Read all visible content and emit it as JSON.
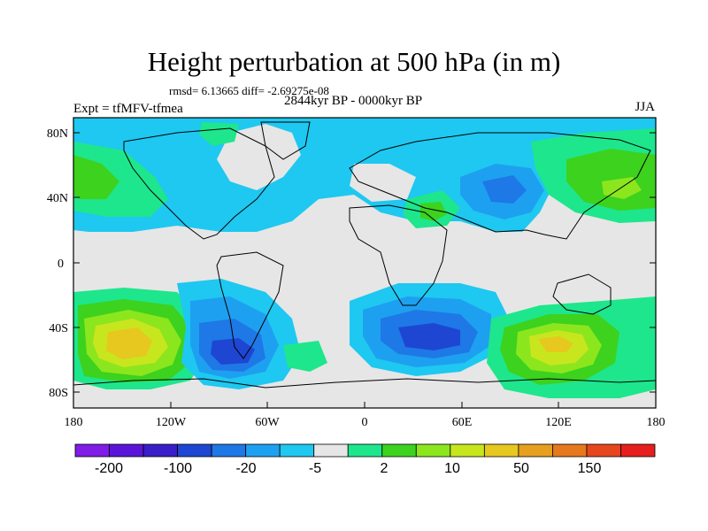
{
  "header": {
    "title": "Height perturbation at 500 hPa (in m)",
    "stats": "rmsd= 6.13665 diff= -2.69275e-08",
    "period": "2844kyr BP - 0000kyr BP",
    "experiment": "Expt = tfMFV-tfmea",
    "season": "JJA"
  },
  "axes": {
    "lat_labels": [
      "80N",
      "40N",
      "0",
      "40S",
      "80S"
    ],
    "lon_labels": [
      "180",
      "120W",
      "60W",
      "0",
      "60E",
      "120E",
      "180"
    ]
  },
  "colorbar": {
    "colors": [
      "#7f1ce6",
      "#5a14d8",
      "#3a1ec8",
      "#1e46d2",
      "#1e78e6",
      "#1ea0f0",
      "#1ec8f0",
      "#e6e6e6",
      "#1ee68c",
      "#3cd21e",
      "#8ce61e",
      "#c8e61e",
      "#e6c81e",
      "#e6a01e",
      "#e6781e",
      "#e6461e",
      "#e61e1e"
    ],
    "labels": [
      "-200",
      "-100",
      "-20",
      "-5",
      "2",
      "10",
      "50",
      "150"
    ]
  },
  "legend_colors": {
    "land_outline": "#000000",
    "background": "#e6e6e6"
  }
}
